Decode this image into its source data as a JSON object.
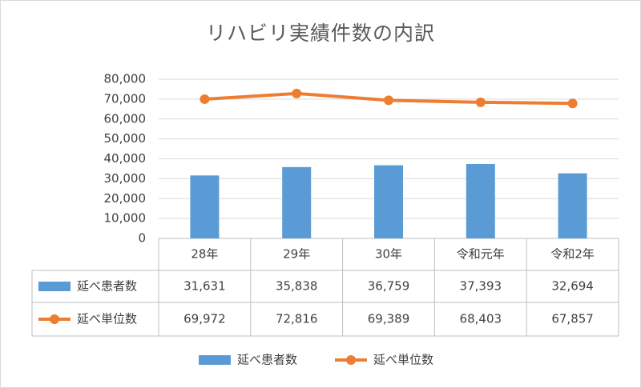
{
  "chart_data": {
    "type": "bar",
    "title": "リハビリ実績件数の内訳",
    "categories": [
      "28年",
      "29年",
      "30年",
      "令和元年",
      "令和2年"
    ],
    "series": [
      {
        "name": "延べ患者数",
        "kind": "bar",
        "color": "#5b9bd5",
        "values": [
          31631,
          35838,
          36759,
          37393,
          32694
        ]
      },
      {
        "name": "延べ単位数",
        "kind": "line",
        "color": "#ed7d31",
        "values": [
          69972,
          72816,
          69389,
          68403,
          67857
        ]
      }
    ],
    "ylim": [
      0,
      80000
    ],
    "yticks": [
      "0",
      "10,000",
      "20,000",
      "30,000",
      "40,000",
      "50,000",
      "60,000",
      "70,000",
      "80,000"
    ],
    "data_table": {
      "rows": [
        {
          "label": "延べ患者数",
          "cells": [
            "31,631",
            "35,838",
            "36,759",
            "37,393",
            "32,694"
          ]
        },
        {
          "label": "延べ単位数",
          "cells": [
            "69,972",
            "72,816",
            "69,389",
            "68,403",
            "67,857"
          ]
        }
      ]
    },
    "grid": true,
    "legend_position": "bottom"
  }
}
